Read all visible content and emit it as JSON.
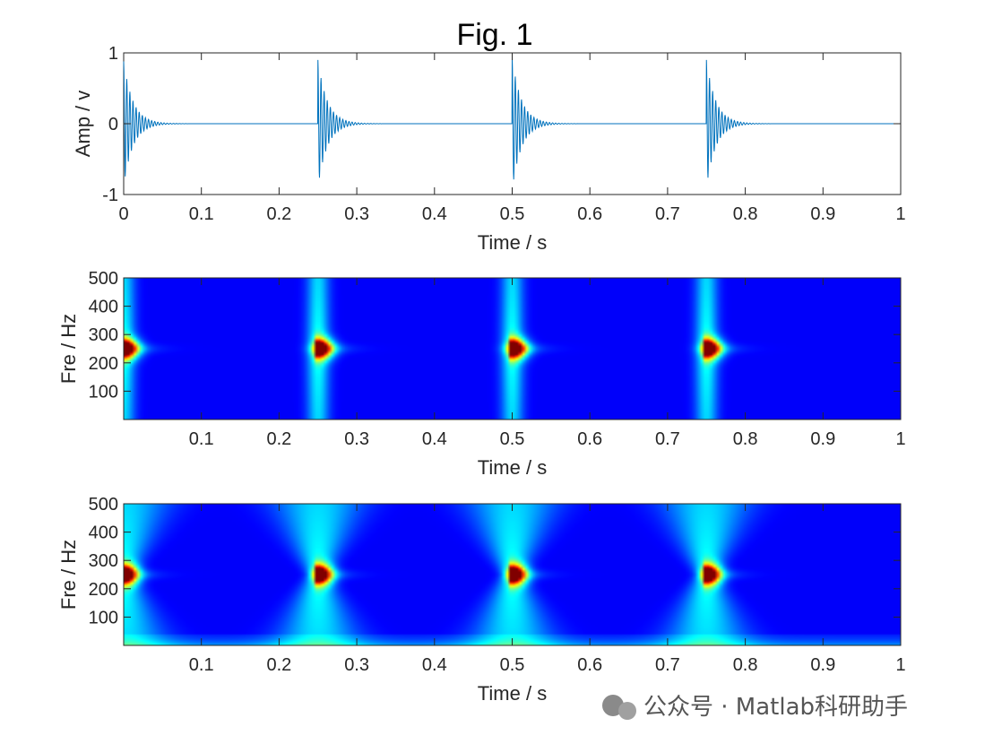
{
  "figure": {
    "title": "Fig. 1",
    "watermark": "公众号 · Matlab科研助手"
  },
  "chart_data": [
    {
      "type": "line",
      "id": "waveform",
      "xlabel": "Time / s",
      "ylabel": "Amp / v",
      "xlim": [
        0,
        1
      ],
      "ylim": [
        -1,
        1
      ],
      "xticks": [
        "0",
        "0.1",
        "0.2",
        "0.3",
        "0.4",
        "0.5",
        "0.6",
        "0.7",
        "0.8",
        "0.9",
        "1"
      ],
      "yticks": [
        "-1",
        "0",
        "1"
      ],
      "line_color": "#0072bd",
      "grid": false,
      "impulse_times": [
        0,
        0.25,
        0.5,
        0.75
      ],
      "impulse_peaks": [
        0.88,
        0.9,
        0.93,
        0.9
      ],
      "resonance_freq_hz": 250
    },
    {
      "type": "heatmap",
      "id": "spectrogram-1",
      "xlabel": "Time / s",
      "ylabel": "Fre / Hz",
      "xlim": [
        0,
        1
      ],
      "ylim": [
        0,
        500
      ],
      "xticks": [
        "0.1",
        "0.2",
        "0.3",
        "0.4",
        "0.5",
        "0.6",
        "0.7",
        "0.8",
        "0.9",
        "1"
      ],
      "yticks": [
        "100",
        "200",
        "300",
        "400",
        "500"
      ],
      "colormap": "jet",
      "hotspots": [
        {
          "time": 0.0,
          "freq": 250
        },
        {
          "time": 0.25,
          "freq": 250
        },
        {
          "time": 0.5,
          "freq": 250
        },
        {
          "time": 0.75,
          "freq": 250
        }
      ]
    },
    {
      "type": "heatmap",
      "id": "spectrogram-2",
      "xlabel": "Time / s",
      "ylabel": "Fre / Hz",
      "xlim": [
        0,
        1
      ],
      "ylim": [
        0,
        500
      ],
      "xticks": [
        "0.1",
        "0.2",
        "0.3",
        "0.4",
        "0.5",
        "0.6",
        "0.7",
        "0.8",
        "0.9",
        "1"
      ],
      "yticks": [
        "100",
        "200",
        "300",
        "400",
        "500"
      ],
      "colormap": "jet",
      "hotspots": [
        {
          "time": 0.0,
          "freq": 250
        },
        {
          "time": 0.25,
          "freq": 250
        },
        {
          "time": 0.5,
          "freq": 250
        },
        {
          "time": 0.75,
          "freq": 250
        }
      ]
    }
  ]
}
